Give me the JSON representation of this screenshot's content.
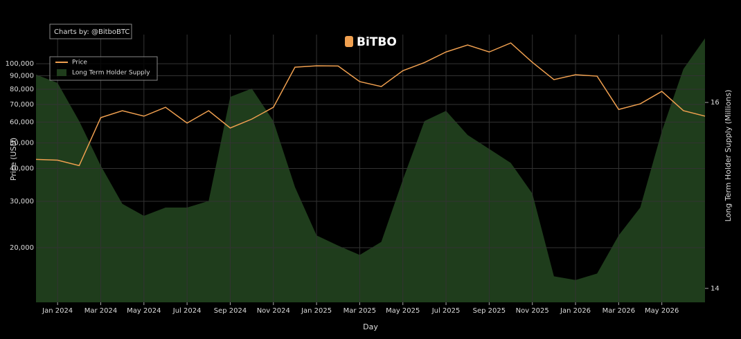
{
  "chart_data": {
    "type": "line",
    "title": "BiTBO",
    "annotation": "Charts by: @BitboBTC",
    "x_label": "Day",
    "y_label": "Price (USD)",
    "y2_label": "Long Term Holder Supply (Millions)",
    "x": [
      "2023-12",
      "2024-01",
      "2024-02",
      "2024-03",
      "2024-04",
      "2024-05",
      "2024-06",
      "2024-07",
      "2024-08",
      "2024-09",
      "2024-10",
      "2024-11",
      "2024-12",
      "2025-01",
      "2025-02",
      "2025-03",
      "2025-04",
      "2025-05",
      "2025-06",
      "2025-07",
      "2025-08",
      "2025-09",
      "2025-10",
      "2025-11",
      "2025-12",
      "2026-01",
      "2026-02",
      "2026-03",
      "2026-04",
      "2026-05",
      "2026-06",
      "2026-07"
    ],
    "series": [
      {
        "name": "Price",
        "color": "#f0a050",
        "kind": "line",
        "values": [
          43300,
          43000,
          41000,
          62400,
          66300,
          63200,
          68300,
          59500,
          66300,
          57000,
          61600,
          68300,
          97000,
          98200,
          98000,
          85500,
          81900,
          94100,
          101000,
          110800,
          117800,
          110800,
          119900,
          101200,
          87000,
          90800,
          89700,
          67000,
          70400,
          78500,
          66300,
          63200
        ]
      },
      {
        "name": "Long Term Holder Supply",
        "color": "#1f3d1c",
        "kind": "area",
        "axis": "y2",
        "values": [
          16.3,
          16.21,
          15.8,
          15.32,
          14.91,
          14.78,
          14.87,
          14.87,
          14.94,
          16.06,
          16.15,
          15.8,
          15.09,
          14.57,
          14.46,
          14.36,
          14.5,
          15.17,
          15.8,
          15.91,
          15.65,
          15.5,
          15.35,
          15.02,
          14.13,
          14.09,
          14.16,
          14.57,
          14.87,
          15.69,
          16.36,
          16.69
        ]
      }
    ],
    "xlim": [
      "2023-12",
      "2026-07"
    ],
    "xticks": [
      {
        "value": "2024-01",
        "label": "Jan 2024"
      },
      {
        "value": "2024-03",
        "label": "Mar 2024"
      },
      {
        "value": "2024-05",
        "label": "May 2024"
      },
      {
        "value": "2024-07",
        "label": "Jul 2024"
      },
      {
        "value": "2024-09",
        "label": "Sep 2024"
      },
      {
        "value": "2024-11",
        "label": "Nov 2024"
      },
      {
        "value": "2025-01",
        "label": "Jan 2025"
      },
      {
        "value": "2025-03",
        "label": "Mar 2025"
      },
      {
        "value": "2025-05",
        "label": "May 2025"
      },
      {
        "value": "2025-07",
        "label": "Jul 2025"
      },
      {
        "value": "2025-09",
        "label": "Sep 2025"
      },
      {
        "value": "2025-11",
        "label": "Nov 2025"
      },
      {
        "value": "2026-01",
        "label": "Jan 2026"
      },
      {
        "value": "2026-03",
        "label": "Mar 2026"
      },
      {
        "value": "2026-05",
        "label": "May 2026"
      }
    ],
    "ylim": [
      12400,
      129000
    ],
    "yscale": "log",
    "yticks": [
      {
        "value": 20000,
        "label": "20,000"
      },
      {
        "value": 30000,
        "label": "30,000"
      },
      {
        "value": 40000,
        "label": "40,000"
      },
      {
        "value": 50000,
        "label": "50,000"
      },
      {
        "value": 60000,
        "label": "60,000"
      },
      {
        "value": 70000,
        "label": "70,000"
      },
      {
        "value": 80000,
        "label": "80,000"
      },
      {
        "value": 90000,
        "label": "90,000"
      },
      {
        "value": 100000,
        "label": "100,000"
      }
    ],
    "y2lim": [
      13.85,
      16.73
    ],
    "y2ticks": [
      14,
      16
    ],
    "grid": true,
    "legend": "top-left"
  }
}
